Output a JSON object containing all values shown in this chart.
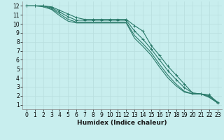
{
  "xlabel": "Humidex (Indice chaleur)",
  "bg_color": "#c8eeee",
  "grid_color": "#b8dede",
  "line_color": "#2a7a6a",
  "x_values": [
    0,
    1,
    2,
    3,
    4,
    5,
    6,
    7,
    8,
    9,
    10,
    11,
    12,
    13,
    14,
    15,
    16,
    17,
    18,
    19,
    20,
    21,
    22,
    23
  ],
  "series": [
    {
      "y": [
        12,
        12,
        12,
        11.9,
        11.5,
        11.1,
        10.7,
        10.5,
        10.5,
        10.5,
        10.5,
        10.5,
        10.5,
        9.8,
        9.2,
        7.6,
        6.5,
        5.3,
        4.3,
        3.3,
        2.3,
        2.2,
        2.1,
        1.2
      ],
      "marker": true,
      "lw": 0.8
    },
    {
      "y": [
        12,
        12,
        12,
        11.8,
        11.3,
        10.8,
        10.4,
        10.4,
        10.4,
        10.4,
        10.4,
        10.4,
        10.4,
        9.2,
        8.3,
        7.2,
        6.0,
        4.8,
        3.8,
        2.9,
        2.3,
        2.2,
        2.0,
        1.3
      ],
      "marker": true,
      "lw": 0.8
    },
    {
      "y": [
        12,
        12,
        12,
        11.7,
        11.1,
        10.5,
        10.2,
        10.2,
        10.2,
        10.2,
        10.2,
        10.2,
        10.2,
        8.7,
        7.8,
        6.8,
        5.5,
        4.3,
        3.3,
        2.5,
        2.2,
        2.2,
        1.9,
        1.2
      ],
      "marker": false,
      "lw": 0.8
    },
    {
      "y": [
        12,
        12,
        11.9,
        11.6,
        10.9,
        10.3,
        10.1,
        10.1,
        10.1,
        10.1,
        10.1,
        10.1,
        10.1,
        8.4,
        7.5,
        6.5,
        5.2,
        4.0,
        3.1,
        2.4,
        2.2,
        2.2,
        1.8,
        1.2
      ],
      "marker": false,
      "lw": 0.8
    }
  ],
  "xlim": [
    -0.5,
    23.5
  ],
  "ylim": [
    0.5,
    12.5
  ],
  "xticks": [
    0,
    1,
    2,
    3,
    4,
    5,
    6,
    7,
    8,
    9,
    10,
    11,
    12,
    13,
    14,
    15,
    16,
    17,
    18,
    19,
    20,
    21,
    22,
    23
  ],
  "yticks": [
    1,
    2,
    3,
    4,
    5,
    6,
    7,
    8,
    9,
    10,
    11,
    12
  ],
  "tick_fontsize": 5.5,
  "xlabel_fontsize": 6.5
}
